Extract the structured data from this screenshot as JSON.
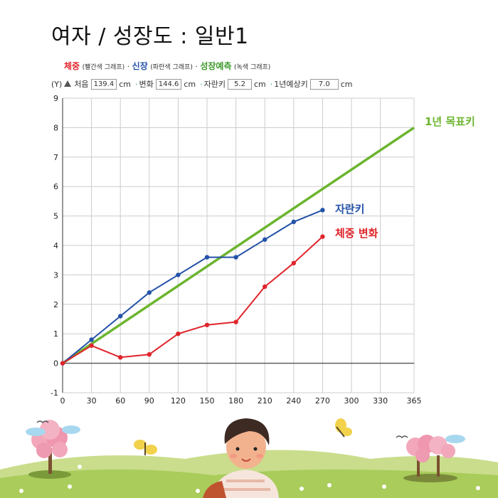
{
  "title": "여자 / 성장도 : 일반1",
  "legend": {
    "weight_label": "체중",
    "weight_note": "(빨간색 그래프)",
    "sep1": "·",
    "height_label": "신장",
    "height_note": "(파란색 그래프)",
    "sep2": "·",
    "predict_label": "성장예측",
    "predict_note": "(녹색 그래프)"
  },
  "inputs": {
    "y_label": "(Y)",
    "first_label": "처음",
    "first_value": "139.4",
    "first_unit": "cm",
    "change_label": "변화",
    "change_value": "144.6",
    "change_unit": "cm",
    "growth_label": "자란키",
    "growth_value": "5.2",
    "growth_unit": "cm",
    "predict_label": "1년예상키",
    "predict_value": "7.0",
    "predict_unit": "cm"
  },
  "colors": {
    "height": "#2452a8",
    "weight": "#e0242b",
    "target": "#6cb52f",
    "grid": "#cccccc"
  },
  "chart_data": {
    "type": "line",
    "x_ticks": [
      0,
      30,
      60,
      90,
      120,
      150,
      180,
      210,
      240,
      270,
      300,
      330,
      365
    ],
    "y_ticks": [
      -1,
      0,
      1,
      2,
      3,
      4,
      5,
      6,
      7,
      8,
      9
    ],
    "xlim": [
      0,
      365
    ],
    "ylim": [
      -1,
      9
    ],
    "grid": true,
    "series": [
      {
        "key": "target",
        "name": "1년 목표키",
        "color": "#6cb52f",
        "x": [
          0,
          365
        ],
        "y": [
          0,
          8
        ],
        "markers": false
      },
      {
        "key": "height",
        "name": "자란키",
        "color": "#2452a8",
        "x": [
          0,
          30,
          60,
          90,
          120,
          150,
          180,
          210,
          240,
          270
        ],
        "y": [
          0,
          0.8,
          1.6,
          2.4,
          3.0,
          3.6,
          3.6,
          4.2,
          4.8,
          5.2
        ],
        "markers": true
      },
      {
        "key": "weight",
        "name": "체중 변화",
        "color": "#e0242b",
        "x": [
          0,
          30,
          60,
          90,
          120,
          150,
          180,
          210,
          240,
          270
        ],
        "y": [
          0,
          0.6,
          0.2,
          0.3,
          1.0,
          1.3,
          1.4,
          2.6,
          3.4,
          4.3
        ],
        "markers": true
      }
    ]
  }
}
